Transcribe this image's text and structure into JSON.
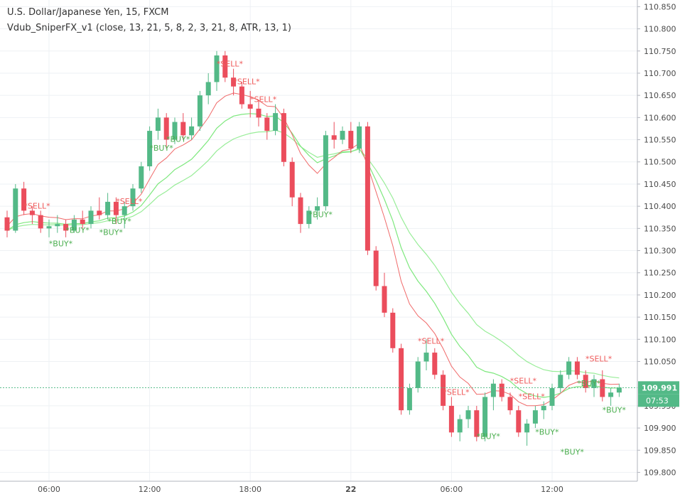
{
  "chart": {
    "symbol_line": "U.S. Dollar/Japanese Yen, 15, FXCM",
    "indicator_line": "Vdub_SniperFX_v1 (close, 13, 21, 5, 8, 2, 3, 21, 8, ATR, 13, 1)"
  },
  "chart_data": {
    "type": "candlestick",
    "symbol": "U.S. Dollar/Japanese Yen",
    "timeframe": "15",
    "source": "FXCM",
    "ylim": [
      109.78,
      110.865
    ],
    "y_ticks": [
      "110.850",
      "110.800",
      "110.750",
      "110.700",
      "110.650",
      "110.600",
      "110.550",
      "110.500",
      "110.450",
      "110.400",
      "110.350",
      "110.300",
      "110.250",
      "110.200",
      "110.150",
      "110.100",
      "110.050",
      "109.950",
      "109.900",
      "109.850",
      "109.800"
    ],
    "x_ticks": [
      "06:00",
      "12:00",
      "18:00",
      "22",
      "06:00",
      "12:00"
    ],
    "current_price": "109.991",
    "countdown": "07:53",
    "up_color": "#53b987",
    "down_color": "#eb4d5c",
    "fast_ema_color": "#7ee87e",
    "slow_ema_color": "#f06a6a",
    "candles": [
      [
        110.375,
        110.39,
        110.33,
        110.345
      ],
      [
        110.345,
        110.45,
        110.34,
        110.44
      ],
      [
        110.44,
        110.455,
        110.38,
        110.39
      ],
      [
        110.39,
        110.4,
        110.36,
        110.38
      ],
      [
        110.38,
        110.39,
        110.34,
        110.35
      ],
      [
        110.35,
        110.37,
        110.33,
        110.355
      ],
      [
        110.355,
        110.38,
        110.34,
        110.36
      ],
      [
        110.36,
        110.37,
        110.33,
        110.345
      ],
      [
        110.345,
        110.38,
        110.34,
        110.37
      ],
      [
        110.37,
        110.39,
        110.35,
        110.36
      ],
      [
        110.36,
        110.4,
        110.35,
        110.39
      ],
      [
        110.39,
        110.42,
        110.37,
        110.38
      ],
      [
        110.38,
        110.43,
        110.37,
        110.41
      ],
      [
        110.41,
        110.42,
        110.36,
        110.38
      ],
      [
        110.38,
        110.41,
        110.35,
        110.4
      ],
      [
        110.4,
        110.45,
        110.39,
        110.44
      ],
      [
        110.44,
        110.5,
        110.43,
        110.49
      ],
      [
        110.49,
        110.58,
        110.48,
        110.57
      ],
      [
        110.57,
        110.62,
        110.55,
        110.6
      ],
      [
        110.6,
        110.61,
        110.53,
        110.55
      ],
      [
        110.55,
        110.6,
        110.54,
        110.59
      ],
      [
        110.59,
        110.61,
        110.55,
        110.56
      ],
      [
        110.56,
        110.6,
        110.55,
        110.58
      ],
      [
        110.58,
        110.66,
        110.57,
        110.65
      ],
      [
        110.65,
        110.7,
        110.63,
        110.68
      ],
      [
        110.68,
        110.75,
        110.66,
        110.74
      ],
      [
        110.74,
        110.75,
        110.68,
        110.69
      ],
      [
        110.69,
        110.71,
        110.65,
        110.67
      ],
      [
        110.67,
        110.68,
        110.62,
        110.63
      ],
      [
        110.63,
        110.66,
        110.6,
        110.62
      ],
      [
        110.62,
        110.64,
        110.58,
        110.6
      ],
      [
        110.6,
        110.61,
        110.55,
        110.57
      ],
      [
        110.57,
        110.63,
        110.56,
        110.61
      ],
      [
        110.61,
        110.62,
        110.49,
        110.5
      ],
      [
        110.5,
        110.51,
        110.4,
        110.42
      ],
      [
        110.42,
        110.43,
        110.34,
        110.36
      ],
      [
        110.36,
        110.4,
        110.35,
        110.39
      ],
      [
        110.39,
        110.42,
        110.37,
        110.4
      ],
      [
        110.4,
        110.57,
        110.39,
        110.56
      ],
      [
        110.56,
        110.59,
        110.53,
        110.55
      ],
      [
        110.55,
        110.58,
        110.54,
        110.57
      ],
      [
        110.57,
        110.59,
        110.52,
        110.53
      ],
      [
        110.53,
        110.59,
        110.52,
        110.58
      ],
      [
        110.58,
        110.59,
        110.29,
        110.3
      ],
      [
        110.3,
        110.31,
        110.21,
        110.22
      ],
      [
        110.22,
        110.25,
        110.15,
        110.16
      ],
      [
        110.16,
        110.17,
        110.07,
        110.08
      ],
      [
        110.08,
        110.09,
        109.93,
        109.94
      ],
      [
        109.94,
        110.0,
        109.93,
        109.99
      ],
      [
        109.99,
        110.06,
        109.98,
        110.05
      ],
      [
        110.05,
        110.1,
        110.03,
        110.07
      ],
      [
        110.07,
        110.08,
        110.01,
        110.02
      ],
      [
        110.02,
        110.03,
        109.94,
        109.95
      ],
      [
        109.95,
        109.97,
        109.88,
        109.89
      ],
      [
        109.89,
        109.93,
        109.87,
        109.92
      ],
      [
        109.92,
        109.95,
        109.9,
        109.94
      ],
      [
        109.94,
        109.95,
        109.87,
        109.88
      ],
      [
        109.88,
        109.98,
        109.87,
        109.97
      ],
      [
        109.97,
        110.01,
        109.94,
        110.0
      ],
      [
        110.0,
        110.01,
        109.96,
        109.97
      ],
      [
        109.97,
        109.98,
        109.93,
        109.94
      ],
      [
        109.94,
        109.95,
        109.88,
        109.89
      ],
      [
        109.89,
        109.92,
        109.86,
        109.91
      ],
      [
        109.91,
        109.95,
        109.9,
        109.94
      ],
      [
        109.94,
        109.96,
        109.92,
        109.95
      ],
      [
        109.95,
        110.0,
        109.94,
        109.99
      ],
      [
        109.99,
        110.03,
        109.98,
        110.02
      ],
      [
        110.02,
        110.06,
        110.01,
        110.05
      ],
      [
        110.05,
        110.06,
        110.01,
        110.02
      ],
      [
        110.02,
        110.03,
        109.98,
        109.99
      ],
      [
        109.99,
        110.02,
        109.97,
        110.01
      ],
      [
        110.01,
        110.03,
        109.96,
        109.97
      ],
      [
        109.97,
        109.99,
        109.95,
        109.98
      ],
      [
        109.98,
        110.0,
        109.97,
        109.991
      ]
    ],
    "annotations": [
      {
        "text": "*SELL*",
        "i": 3,
        "price": 110.395
      },
      {
        "text": "*SELL*",
        "i": 14,
        "price": 110.405
      },
      {
        "text": "*SELL*",
        "i": 26,
        "price": 110.715
      },
      {
        "text": "*SELL*",
        "i": 28,
        "price": 110.675
      },
      {
        "text": "*SELL*",
        "i": 30,
        "price": 110.635
      },
      {
        "text": "*SELL*",
        "i": 50,
        "price": 110.09
      },
      {
        "text": "*SELL*",
        "i": 53,
        "price": 109.975
      },
      {
        "text": "*SELL*",
        "i": 61,
        "price": 110.0
      },
      {
        "text": "*SELL*",
        "i": 62,
        "price": 109.965
      },
      {
        "text": "*SELL*",
        "i": 70,
        "price": 110.05
      },
      {
        "text": "*BUY*",
        "i": 6,
        "price": 110.31
      },
      {
        "text": "*BUY*",
        "i": 8,
        "price": 110.34
      },
      {
        "text": "*BUY*",
        "i": 12,
        "price": 110.335
      },
      {
        "text": "*BUY*",
        "i": 13,
        "price": 110.36
      },
      {
        "text": "*BUY*",
        "i": 18,
        "price": 110.525
      },
      {
        "text": "*BUY*",
        "i": 20,
        "price": 110.545
      },
      {
        "text": "*BUY*",
        "i": 37,
        "price": 110.375
      },
      {
        "text": "*BUY*",
        "i": 57,
        "price": 109.875
      },
      {
        "text": "*BUY*",
        "i": 64,
        "price": 109.885
      },
      {
        "text": "*BUY*",
        "i": 67,
        "price": 109.84
      },
      {
        "text": "*BUY*",
        "i": 69,
        "price": 109.995
      },
      {
        "text": "*BUY*",
        "i": 72,
        "price": 109.935
      }
    ]
  }
}
